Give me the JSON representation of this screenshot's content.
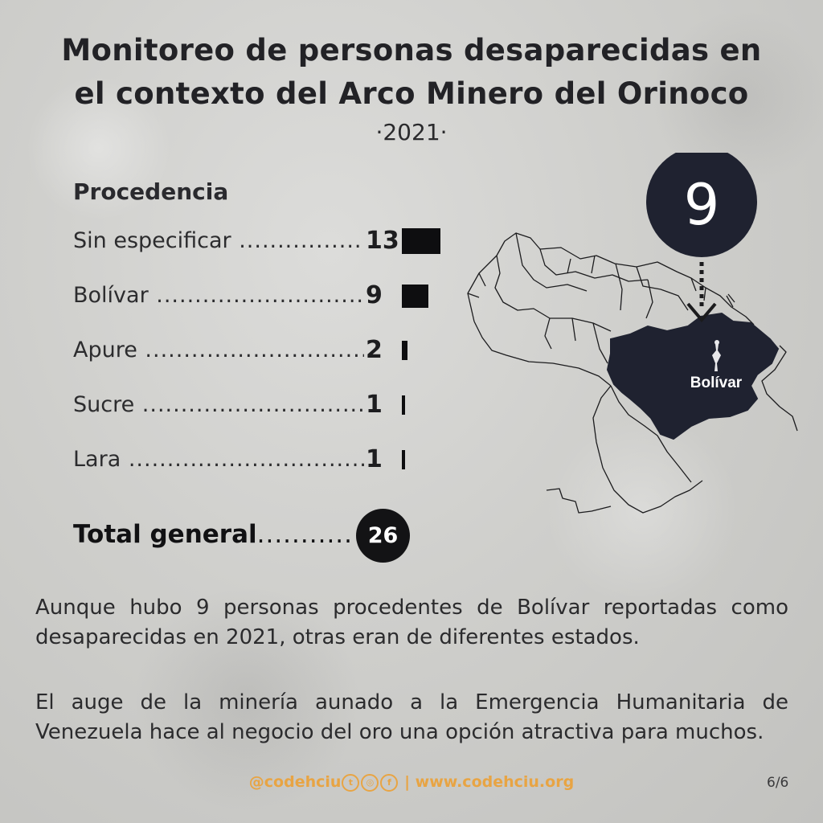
{
  "title_line1": "Monitoreo de personas desaparecidas en",
  "title_line2": "el contexto del Arco Minero del Orinoco",
  "year": "·2021·",
  "chart_data": {
    "type": "bar",
    "title": "Procedencia",
    "categories": [
      "Sin especificar",
      "Bolívar",
      "Apure",
      "Sucre",
      "Lara"
    ],
    "values": [
      13,
      9,
      2,
      1,
      1
    ],
    "value_labels": [
      "13",
      "9",
      "2",
      "1",
      "1"
    ],
    "bar_color": "#0e0e10"
  },
  "total": {
    "label": "Total general",
    "dots": "...............",
    "value": "26"
  },
  "map": {
    "count": "9",
    "region_label": "Bolívar",
    "highlight_color": "#1f2230"
  },
  "paragraph1": "Aunque hubo 9 personas procedentes de Bolívar reportadas como desaparecidas en 2021, otras eran de diferentes estados.",
  "paragraph2": "El auge de la minería aunado a la Emergencia Humanitaria de Venezuela hace al negocio del oro una opción atractiva para muchos.",
  "footer": {
    "handle": "@codehciu",
    "separator": "|",
    "website": "www.codehciu.org",
    "icons": [
      "twitter-icon",
      "instagram-icon",
      "facebook-icon"
    ],
    "accent_color": "#e8a443"
  },
  "page": "6/6"
}
